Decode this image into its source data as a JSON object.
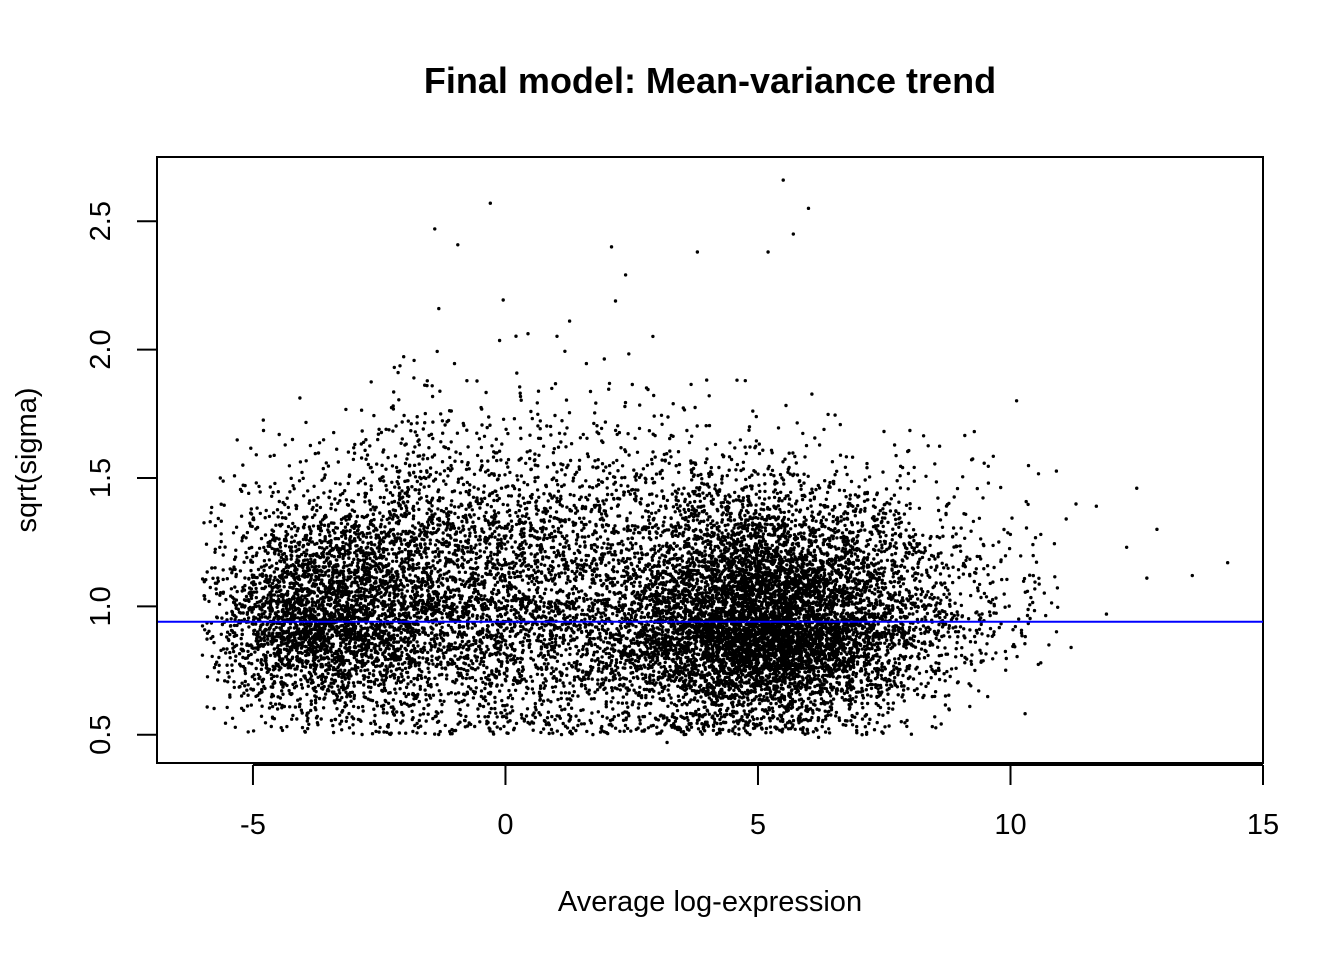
{
  "chart_data": {
    "type": "scatter",
    "title": "Final model: Mean-variance trend",
    "xlabel": "Average log-expression",
    "ylabel": "sqrt(sigma)",
    "xlim": [
      -6.9,
      15.0
    ],
    "ylim": [
      0.39,
      2.75
    ],
    "x_ticks": [
      -5,
      0,
      5,
      10,
      15
    ],
    "x_tick_labels": [
      "-5",
      "0",
      "5",
      "10",
      "15"
    ],
    "y_ticks": [
      0.5,
      1.0,
      1.5,
      2.0,
      2.5
    ],
    "y_tick_labels": [
      "0.5",
      "1.0",
      "1.5",
      "2.0",
      "2.5"
    ],
    "grid": false,
    "trend_line": {
      "type": "horizontal",
      "y": 0.94,
      "color": "#0000ff"
    },
    "point_color": "#000000",
    "notable_points": [
      {
        "x": 5.5,
        "y": 2.66
      },
      {
        "x": -0.3,
        "y": 2.57
      },
      {
        "x": 6.0,
        "y": 2.55
      },
      {
        "x": -1.4,
        "y": 2.47
      },
      {
        "x": 5.7,
        "y": 2.45
      },
      {
        "x": 2.1,
        "y": 2.4
      },
      {
        "x": 3.8,
        "y": 2.38
      },
      {
        "x": 5.2,
        "y": 2.38
      },
      {
        "x": 12.5,
        "y": 1.46
      },
      {
        "x": 11.7,
        "y": 1.39
      },
      {
        "x": 12.9,
        "y": 1.3
      },
      {
        "x": 12.3,
        "y": 1.23
      },
      {
        "x": 14.3,
        "y": 1.17
      },
      {
        "x": 13.6,
        "y": 1.12
      },
      {
        "x": 12.7,
        "y": 1.11
      },
      {
        "x": 11.9,
        "y": 0.97
      },
      {
        "x": 11.2,
        "y": 0.84
      },
      {
        "x": -5.2,
        "y": 1.55
      },
      {
        "x": -6.0,
        "y": 0.81
      },
      {
        "x": 3.2,
        "y": 0.47
      },
      {
        "x": 6.2,
        "y": 0.49
      },
      {
        "x": 8.5,
        "y": 0.57
      },
      {
        "x": 10.6,
        "y": 0.78
      }
    ],
    "clusters": [
      {
        "cx": -3.8,
        "cy": 0.96,
        "sx": 1.0,
        "sy": 0.17,
        "n": 2600
      },
      {
        "cx": -1.8,
        "cy": 1.03,
        "sx": 1.2,
        "sy": 0.24,
        "n": 2200
      },
      {
        "cx": 1.0,
        "cy": 1.03,
        "sx": 1.4,
        "sy": 0.27,
        "n": 2200
      },
      {
        "cx": 4.0,
        "cy": 0.95,
        "sx": 1.1,
        "sy": 0.22,
        "n": 3000
      },
      {
        "cx": 5.4,
        "cy": 0.92,
        "sx": 1.0,
        "sy": 0.17,
        "n": 3600
      },
      {
        "cx": 6.9,
        "cy": 0.96,
        "sx": 0.9,
        "sy": 0.2,
        "n": 1500
      },
      {
        "cx": 8.7,
        "cy": 1.02,
        "sx": 0.8,
        "sy": 0.18,
        "n": 350
      },
      {
        "cx": 10.3,
        "cy": 1.03,
        "sx": 0.6,
        "sy": 0.15,
        "n": 60
      }
    ]
  }
}
